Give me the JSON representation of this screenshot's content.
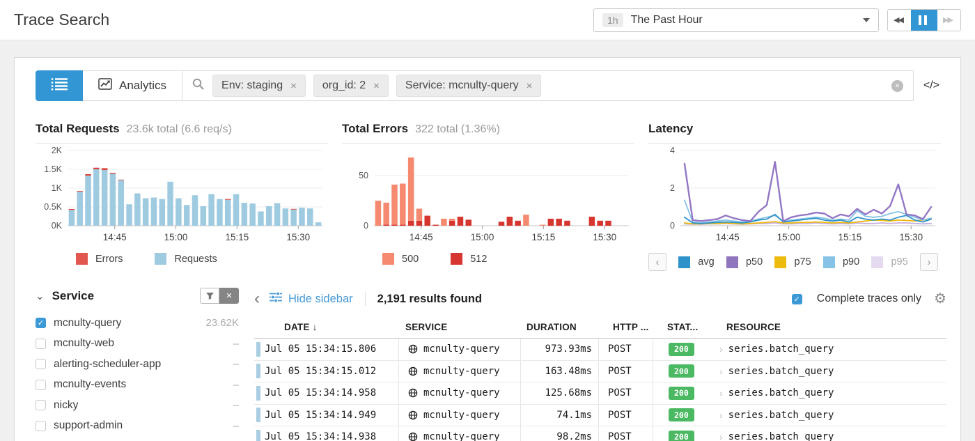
{
  "icons": {
    "rewind": "◀◀",
    "forward": "▶▶",
    "clear_x": "✕",
    "code": "</>",
    "chevron_left": "‹",
    "chevron_right": "›",
    "gear": "⚙",
    "check": "✓",
    "sort_down": "↓",
    "facet_caret": "⌄",
    "pill_x": "×",
    "row_chevron": "›"
  },
  "header": {
    "title": "Trace Search",
    "time": {
      "badge": "1h",
      "label": "The Past Hour"
    }
  },
  "search": {
    "analytics": "Analytics",
    "pills": [
      "Env: staging",
      "org_id: 2",
      "Service: mcnulty-query"
    ]
  },
  "chart_data": [
    {
      "type": "bar",
      "stacked": true,
      "title": "Total Requests",
      "subtitle": "23.6k total (6.6 req/s)",
      "ymax": 2000,
      "yticks": [
        {
          "v": 0,
          "label": "0K"
        },
        {
          "v": 500,
          "label": "0.5K"
        },
        {
          "v": 1000,
          "label": "1K"
        },
        {
          "v": 1500,
          "label": "1.5K"
        },
        {
          "v": 2000,
          "label": "2K"
        }
      ],
      "xticks": [
        {
          "pos": 0.185,
          "label": "14:45"
        },
        {
          "pos": 0.425,
          "label": "15:00"
        },
        {
          "pos": 0.665,
          "label": "15:15"
        },
        {
          "pos": 0.905,
          "label": "15:30"
        }
      ],
      "series": [
        {
          "name": "Requests",
          "color": "#9fcbe1",
          "values": [
            420,
            900,
            1330,
            1500,
            1480,
            1380,
            1210,
            570,
            860,
            730,
            750,
            710,
            1170,
            730,
            550,
            810,
            520,
            840,
            710,
            690,
            840,
            610,
            590,
            380,
            520,
            600,
            460,
            430,
            480,
            460,
            90
          ]
        },
        {
          "name": "Errors",
          "color": "#d9443c",
          "values": [
            25,
            22,
            40,
            42,
            50,
            25,
            15,
            0,
            0,
            0,
            0,
            0,
            0,
            0,
            0,
            0,
            0,
            0,
            0,
            20,
            0,
            0,
            0,
            0,
            0,
            0,
            0,
            18,
            0,
            0,
            0
          ]
        }
      ],
      "legend": [
        {
          "label": "Errors",
          "color": "#e2574e"
        },
        {
          "label": "Requests",
          "color": "#9fcbe1"
        }
      ]
    },
    {
      "type": "bar",
      "stacked": true,
      "title": "Total Errors",
      "subtitle": "322 total (1.36%)",
      "ymax": 75,
      "yticks": [
        {
          "v": 0,
          "label": "0"
        },
        {
          "v": 50,
          "label": "50"
        }
      ],
      "xticks": [
        {
          "pos": 0.185,
          "label": "14:45"
        },
        {
          "pos": 0.425,
          "label": "15:00"
        },
        {
          "pos": 0.665,
          "label": "15:15"
        },
        {
          "pos": 0.905,
          "label": "15:30"
        }
      ],
      "series": [
        {
          "name": "512",
          "color": "#d6362f",
          "values": [
            0,
            1,
            1,
            1,
            5,
            5,
            10,
            1,
            0,
            5,
            9,
            6,
            0,
            0,
            0,
            4,
            9,
            5,
            0,
            0,
            0,
            7,
            7,
            5,
            0,
            0,
            9,
            5,
            5,
            0,
            0
          ]
        },
        {
          "name": "500",
          "color": "#f58a70",
          "values": [
            25,
            22,
            40,
            41,
            63,
            12,
            0,
            0,
            7,
            2,
            0,
            0,
            0,
            0,
            0,
            0,
            0,
            0,
            11,
            0,
            1,
            0,
            0,
            0,
            0,
            0,
            0,
            0,
            0,
            0,
            0
          ]
        }
      ],
      "legend": [
        {
          "label": "500",
          "color": "#f58a70"
        },
        {
          "label": "512",
          "color": "#d6362f"
        }
      ]
    },
    {
      "type": "line",
      "title": "Latency",
      "subtitle": "",
      "ymax": 4,
      "yticks": [
        {
          "v": 0,
          "label": "0"
        },
        {
          "v": 2,
          "label": "2"
        },
        {
          "v": 4,
          "label": "4"
        }
      ],
      "xticks": [
        {
          "pos": 0.185,
          "label": "14:45"
        },
        {
          "pos": 0.425,
          "label": "15:00"
        },
        {
          "pos": 0.665,
          "label": "15:15"
        },
        {
          "pos": 0.905,
          "label": "15:30"
        }
      ],
      "series": [
        {
          "name": "p95",
          "color": "#c5aede",
          "width": 1.8,
          "values": [
            0.1,
            0.08,
            0.08,
            0.1,
            0.1,
            0.12,
            0.1,
            0.08,
            0.1,
            0.12,
            0.12,
            0.15,
            0.1,
            0.1,
            0.12,
            0.12,
            0.15,
            0.12,
            0.1,
            0.12,
            0.1,
            0.15,
            0.12,
            0.12,
            0.15,
            0.12,
            0.15,
            0.15,
            0.12,
            0.1,
            0.12
          ]
        },
        {
          "name": "p75",
          "color": "#edbb0e",
          "width": 1.8,
          "values": [
            0.15,
            0.1,
            0.1,
            0.12,
            0.12,
            0.15,
            0.12,
            0.1,
            0.12,
            0.15,
            0.18,
            0.22,
            0.15,
            0.15,
            0.18,
            0.18,
            0.2,
            0.18,
            0.15,
            0.18,
            0.15,
            0.2,
            0.25,
            0.3,
            0.28,
            0.25,
            0.3,
            0.28,
            0.25,
            0.3,
            0.35
          ]
        },
        {
          "name": "p90",
          "color": "#86c3e6",
          "width": 1.8,
          "values": [
            1.35,
            0.2,
            0.15,
            0.2,
            0.25,
            0.3,
            0.25,
            0.2,
            0.25,
            0.35,
            0.45,
            0.55,
            0.25,
            0.3,
            0.35,
            0.4,
            0.45,
            0.4,
            0.3,
            0.35,
            0.3,
            0.8,
            0.5,
            0.45,
            0.5,
            0.65,
            0.75,
            0.6,
            0.45,
            0.3,
            0.4
          ]
        },
        {
          "name": "avg",
          "color": "#2e93c9",
          "width": 1.8,
          "values": [
            0.45,
            0.15,
            0.12,
            0.15,
            0.18,
            0.2,
            0.18,
            0.15,
            0.2,
            0.3,
            0.35,
            0.6,
            0.2,
            0.25,
            0.3,
            0.35,
            0.4,
            0.3,
            0.25,
            0.3,
            0.2,
            0.45,
            0.35,
            0.3,
            0.35,
            0.3,
            0.45,
            0.55,
            0.3,
            0.2,
            0.35
          ]
        },
        {
          "name": "p50",
          "color": "#9377c6",
          "width": 2.4,
          "values": [
            3.3,
            0.3,
            0.25,
            0.3,
            0.35,
            0.55,
            0.4,
            0.3,
            0.25,
            0.75,
            1.1,
            3.4,
            0.25,
            0.45,
            0.55,
            0.6,
            0.7,
            0.65,
            0.4,
            0.6,
            0.5,
            0.9,
            0.6,
            0.85,
            0.65,
            1.05,
            2.2,
            0.6,
            0.55,
            0.35,
            1.0
          ]
        }
      ],
      "legend": [
        {
          "label": "avg",
          "color": "#2e93c9"
        },
        {
          "label": "p50",
          "color": "#8f75bd"
        },
        {
          "label": "p75",
          "color": "#edbb0e"
        },
        {
          "label": "p90",
          "color": "#86c3e6"
        },
        {
          "label": "p95",
          "color": "#c5aede",
          "faded": true
        }
      ],
      "legend_scroll": true
    }
  ],
  "facet": {
    "title": "Service",
    "items": [
      {
        "label": "mcnulty-query",
        "count": "23.62K",
        "checked": true
      },
      {
        "label": "mcnulty-web",
        "count": "–",
        "checked": false
      },
      {
        "label": "alerting-scheduler-app",
        "count": "–",
        "checked": false
      },
      {
        "label": "mcnulty-events",
        "count": "–",
        "checked": false
      },
      {
        "label": "nicky",
        "count": "–",
        "checked": false
      },
      {
        "label": "support-admin",
        "count": "–",
        "checked": false
      }
    ]
  },
  "results": {
    "hide_sidebar": "Hide sidebar",
    "count": "2,191 results found",
    "complete_traces": "Complete traces only"
  },
  "table": {
    "columns": [
      "DATE",
      "SERVICE",
      "DURATION",
      "HTTP ...",
      "STAT...",
      "RESOURCE"
    ],
    "rows": [
      {
        "date": "Jul 05 15:34:15.806",
        "service": "mcnulty-query",
        "duration": "973.93ms",
        "method": "POST",
        "status": "200",
        "resource": "series.batch_query"
      },
      {
        "date": "Jul 05 15:34:15.012",
        "service": "mcnulty-query",
        "duration": "163.48ms",
        "method": "POST",
        "status": "200",
        "resource": "series.batch_query"
      },
      {
        "date": "Jul 05 15:34:14.958",
        "service": "mcnulty-query",
        "duration": "125.68ms",
        "method": "POST",
        "status": "200",
        "resource": "series.batch_query"
      },
      {
        "date": "Jul 05 15:34:14.949",
        "service": "mcnulty-query",
        "duration": "74.1ms",
        "method": "POST",
        "status": "200",
        "resource": "series.batch_query"
      },
      {
        "date": "Jul 05 15:34:14.938",
        "service": "mcnulty-query",
        "duration": "98.2ms",
        "method": "POST",
        "status": "200",
        "resource": "series.batch_query"
      }
    ]
  }
}
